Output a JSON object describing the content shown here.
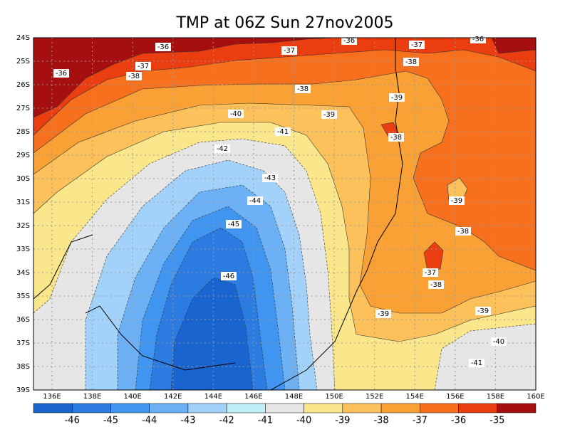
{
  "title": "TMP at 06Z Sun 27nov2005",
  "lat_labels": [
    "24S",
    "25S",
    "26S",
    "27S",
    "28S",
    "29S",
    "30S",
    "31S",
    "32S",
    "33S",
    "34S",
    "35S",
    "36S",
    "37S",
    "38S",
    "39S"
  ],
  "lon_labels": [
    "136E",
    "138E",
    "140E",
    "142E",
    "144E",
    "146E",
    "148E",
    "150E",
    "152E",
    "154E",
    "156E",
    "158E",
    "160E"
  ],
  "colorbar": {
    "labels": [
      -46,
      -45,
      -44,
      -43,
      -42,
      -41,
      -40,
      -39,
      -38,
      -37,
      -36,
      -35
    ],
    "colors": [
      "#1a64d0",
      "#2b7be0",
      "#3f95ef",
      "#6cb1f6",
      "#a2d1fa",
      "#bff0fa",
      "#e6e6e6",
      "#fbe78b",
      "#fcc15a",
      "#faa135",
      "#f7701e",
      "#ea3d10",
      "#a50f0f"
    ]
  },
  "contour_labels": [
    -36,
    -36,
    -36,
    -37,
    -37,
    -37,
    -38,
    -38,
    -36,
    -38,
    -39,
    -40,
    -39,
    -41,
    -38,
    -42,
    -43,
    -44,
    -39,
    -45,
    -38,
    -46,
    -37,
    -38,
    -39,
    -39,
    -40,
    -41
  ]
}
